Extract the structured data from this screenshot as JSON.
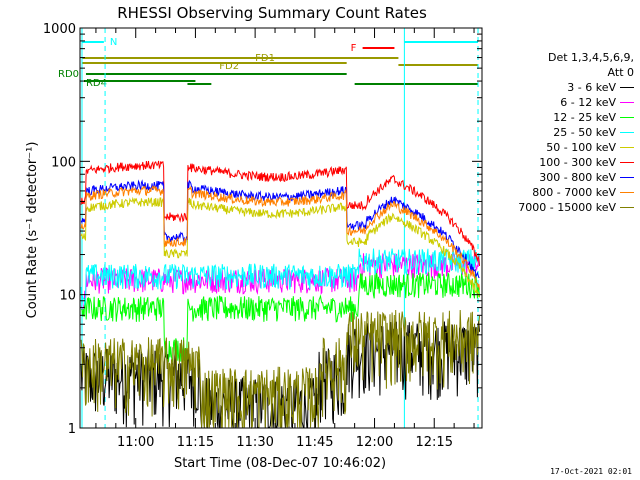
{
  "chart_data": {
    "type": "line",
    "title": "RHESSI Observing Summary Count Rates",
    "xlabel": "Start Time (08-Dec-07 10:46:02)",
    "ylabel": "Count Rate (s⁻¹ detector⁻¹)",
    "y_scale": "log",
    "ylim": [
      1,
      1000
    ],
    "xlim_minutes_of_day": [
      646,
      747
    ],
    "x_ticks": [
      "11:00",
      "11:15",
      "11:30",
      "11:45",
      "12:00",
      "12:15"
    ],
    "y_ticks": [
      "1",
      "10",
      "100",
      "1000"
    ],
    "detectors": "Det 1,3,4,5,6,9,",
    "attenuator": "Att 0",
    "timestamp": "17-Oct-2021 02:01",
    "flag_labels": [
      "N",
      "F",
      "FD1",
      "FD2",
      "RD0",
      "RD4"
    ],
    "legend_position": "right",
    "series": [
      {
        "name": "3 - 6 keV",
        "color": "#000000",
        "approx_level": 2.5
      },
      {
        "name": "6 - 12 keV",
        "color": "#ff00ff",
        "approx_level": 13
      },
      {
        "name": "12 - 25 keV",
        "color": "#00ff00",
        "approx_level": 8
      },
      {
        "name": "25 - 50 keV",
        "color": "#00ffff",
        "approx_level": 14
      },
      {
        "name": "50 - 100 keV",
        "color": "#cccc00",
        "approx_level": 45
      },
      {
        "name": "100 - 300 keV",
        "color": "#ff0000",
        "approx_level": 85
      },
      {
        "name": "300 - 800 keV",
        "color": "#0000ff",
        "approx_level": 60
      },
      {
        "name": "800 - 7000 keV",
        "color": "#ff8000",
        "approx_level": 55
      },
      {
        "name": "7000 - 15000 keV",
        "color": "#808000",
        "approx_level": 3
      }
    ]
  }
}
